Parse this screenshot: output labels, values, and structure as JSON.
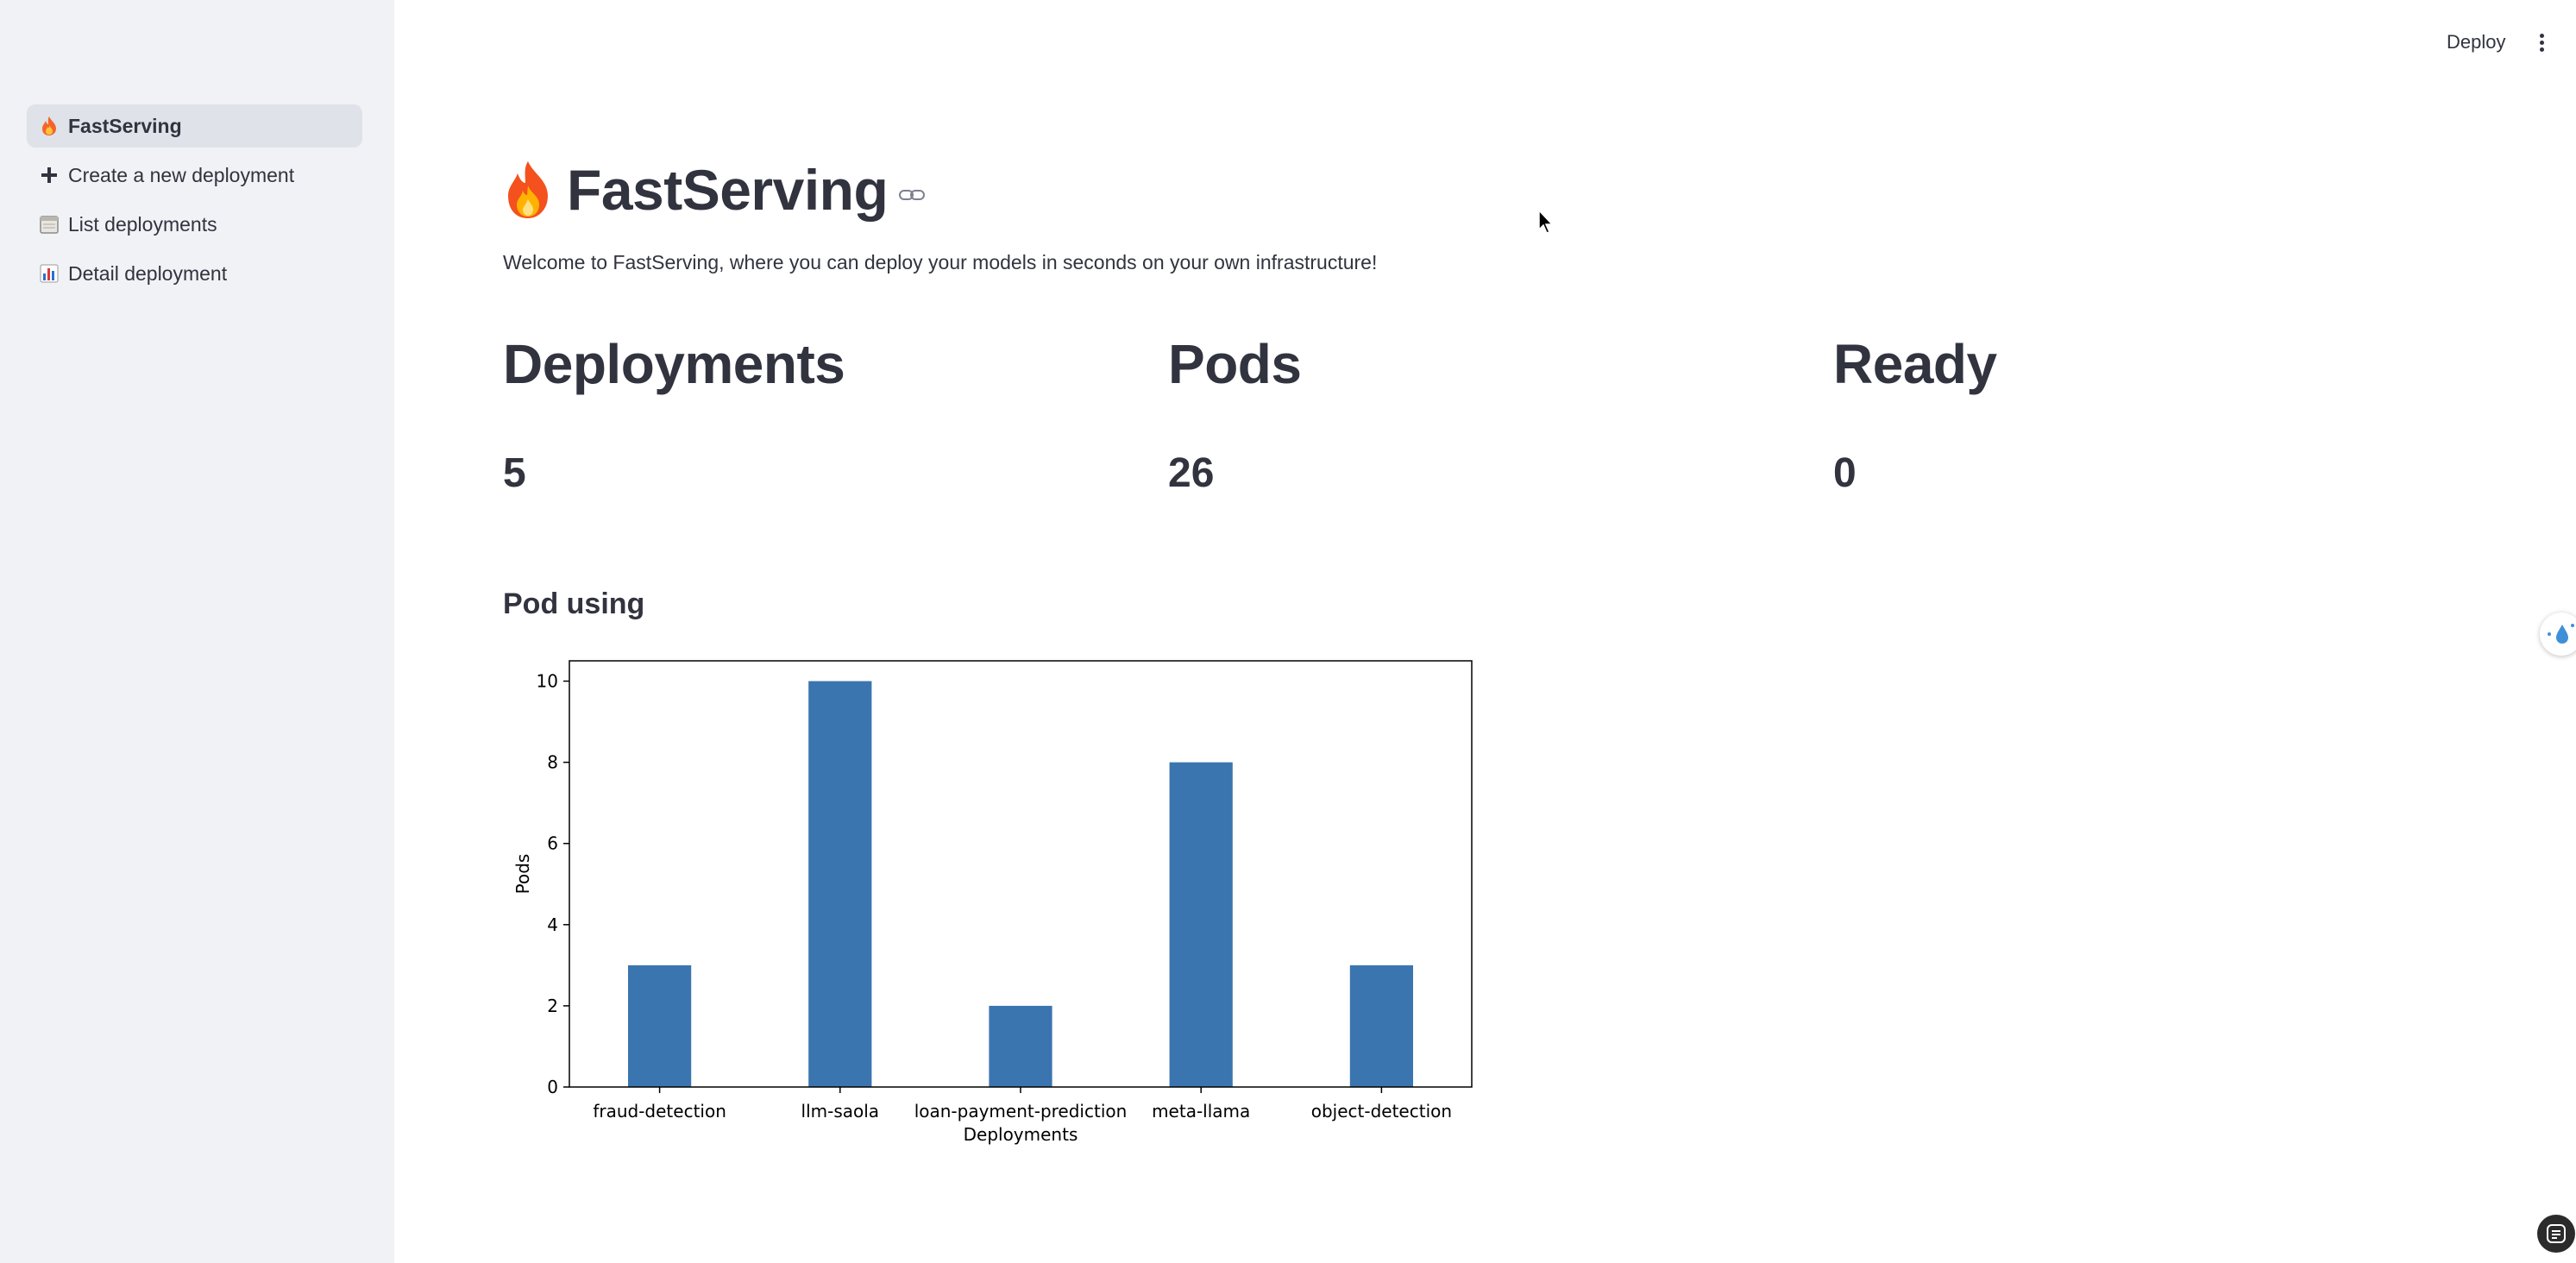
{
  "sidebar": {
    "items": [
      {
        "label": "FastServing",
        "icon": "fire-icon",
        "active": true
      },
      {
        "label": "Create a new deployment",
        "icon": "plus-icon",
        "active": false
      },
      {
        "label": "List deployments",
        "icon": "calendar-icon",
        "active": false
      },
      {
        "label": "Detail deployment",
        "icon": "bar-chart-icon",
        "active": false
      }
    ]
  },
  "header": {
    "deploy_label": "Deploy",
    "menu_icon": "more-vertical-icon"
  },
  "page": {
    "title": "FastServing",
    "title_icon": "fire-icon",
    "welcome": "Welcome to FastServing, where you can deploy your models in seconds on your own infrastructure!",
    "metrics": [
      {
        "label": "Deployments",
        "value": "5"
      },
      {
        "label": "Pods",
        "value": "26"
      },
      {
        "label": "Ready",
        "value": "0"
      }
    ],
    "chart_heading": "Pod using"
  },
  "colors": {
    "sidebar_bg": "#f0f2f6",
    "active_item_bg": "#dfe2e9",
    "text": "#31333f",
    "bar": "#3b75af"
  },
  "chart_data": {
    "type": "bar",
    "categories": [
      "fraud-detection",
      "llm-saola",
      "loan-payment-prediction",
      "meta-llama",
      "object-detection"
    ],
    "values": [
      3,
      10,
      2,
      8,
      3
    ],
    "xlabel": "Deployments",
    "ylabel": "Pods",
    "ylim": [
      0,
      10.5
    ],
    "yticks": [
      0,
      2,
      4,
      6,
      8,
      10
    ],
    "grid": false
  }
}
